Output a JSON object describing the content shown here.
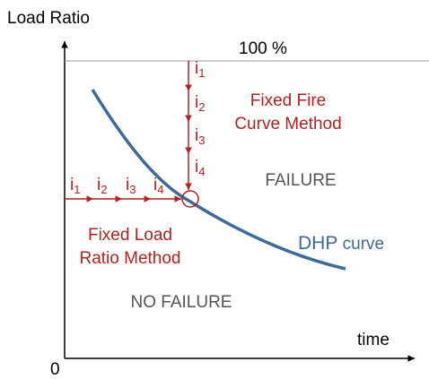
{
  "axes": {
    "y_label": "Load Ratio",
    "x_label": "time",
    "origin": "0",
    "top_line": "100 %"
  },
  "vertical_steps": [
    {
      "base": "i",
      "sub": "1"
    },
    {
      "base": "i",
      "sub": "2"
    },
    {
      "base": "i",
      "sub": "3"
    },
    {
      "base": "i",
      "sub": "4"
    }
  ],
  "horizontal_steps": [
    {
      "base": "i",
      "sub": "1"
    },
    {
      "base": "i",
      "sub": "2"
    },
    {
      "base": "i",
      "sub": "3"
    },
    {
      "base": "i",
      "sub": "4"
    }
  ],
  "regions": {
    "fixed_fire": [
      "Fixed Fire",
      "Curve Method"
    ],
    "failure": "FAILURE",
    "fixed_load": [
      "Fixed Load",
      "Ratio Method"
    ],
    "no_failure": "NO FAILURE"
  },
  "curve": {
    "name": "DHP",
    "suffix": "curve"
  }
}
